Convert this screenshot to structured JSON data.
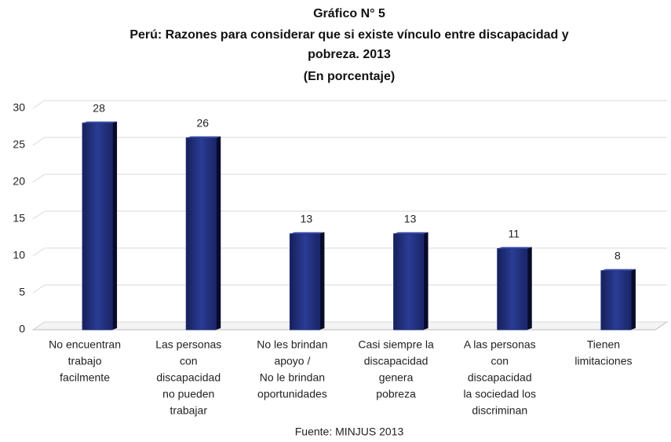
{
  "chart_data": {
    "type": "bar",
    "title": "Gráfico N° 5",
    "subtitle": [
      "Perú: Razones para considerar que si existe vínculo entre discapacidad y",
      "pobreza. 2013"
    ],
    "unit_note": "(En porcentaje)",
    "categories": [
      [
        "No encuentran",
        "trabajo",
        "facilmente"
      ],
      [
        "Las personas",
        "con",
        "discapacidad",
        "no pueden",
        "trabajar"
      ],
      [
        "No les brindan",
        "apoyo /",
        "No le brindan",
        "oportunidades"
      ],
      [
        "Casi siempre la",
        "discapacidad",
        "genera",
        "pobreza"
      ],
      [
        "A las personas",
        "con",
        "discapacidad",
        "la sociedad los",
        "discriminan"
      ],
      [
        "Tienen",
        "limitaciones"
      ]
    ],
    "values": [
      28,
      26,
      13,
      13,
      11,
      8
    ],
    "color": "#1f2d78",
    "ylim": [
      0,
      30
    ],
    "yticks": [
      0,
      5,
      10,
      15,
      20,
      25,
      30
    ],
    "grid": true,
    "source": "Fuente: MINJUS 2013"
  }
}
